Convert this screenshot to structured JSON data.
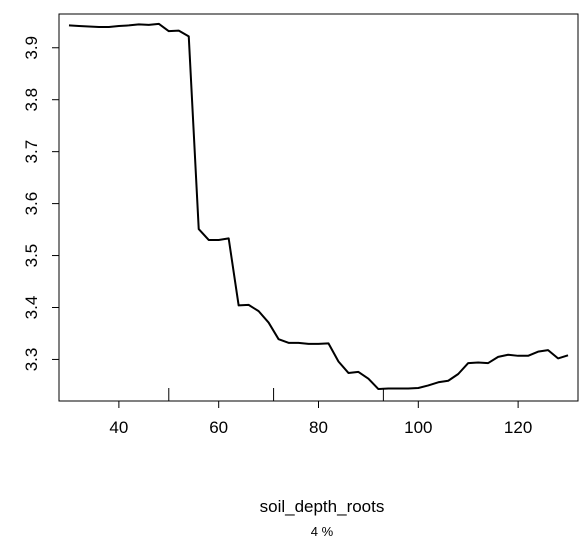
{
  "chart_data": {
    "type": "line",
    "xlabel": "soil_depth_roots",
    "subtitle": "4 %",
    "ylabel": "",
    "xlim": [
      28,
      132
    ],
    "ylim": [
      3.22,
      3.965
    ],
    "x_ticks": [
      40,
      60,
      80,
      100,
      120
    ],
    "x_tick_labels": [
      "40",
      "60",
      "80",
      "100",
      "120"
    ],
    "y_ticks": [
      3.3,
      3.4,
      3.5,
      3.6,
      3.7,
      3.8,
      3.9
    ],
    "y_tick_labels": [
      "3.3",
      "3.4",
      "3.5",
      "3.6",
      "3.7",
      "3.8",
      "3.9"
    ],
    "rug_x": [
      50,
      71,
      93
    ],
    "grid": false,
    "line_color": "#000000",
    "series": [
      {
        "x": [
          30,
          32,
          34,
          36,
          38,
          40,
          42,
          44,
          46,
          48,
          50,
          52,
          54,
          56,
          58,
          60,
          62,
          64,
          66,
          68,
          70,
          72,
          74,
          76,
          78,
          80,
          82,
          84,
          86,
          88,
          90,
          92,
          94,
          96,
          98,
          100,
          102,
          104,
          106,
          108,
          110,
          112,
          114,
          116,
          118,
          120,
          122,
          124,
          126,
          128,
          130
        ],
        "y": [
          3.943,
          3.942,
          3.941,
          3.94,
          3.94,
          3.942,
          3.943,
          3.945,
          3.944,
          3.946,
          3.932,
          3.933,
          3.922,
          3.551,
          3.53,
          3.53,
          3.533,
          3.404,
          3.405,
          3.393,
          3.371,
          3.339,
          3.332,
          3.332,
          3.33,
          3.33,
          3.331,
          3.296,
          3.274,
          3.276,
          3.263,
          3.243,
          3.244,
          3.244,
          3.244,
          3.245,
          3.25,
          3.256,
          3.259,
          3.272,
          3.293,
          3.294,
          3.293,
          3.305,
          3.309,
          3.307,
          3.307,
          3.315,
          3.318,
          3.302,
          3.308
        ]
      }
    ]
  }
}
